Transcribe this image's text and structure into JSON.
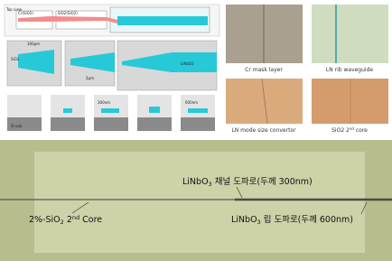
{
  "schematic": {
    "labels": [
      "Top view",
      "Cr(SiO2)",
      "SiO2(SiO2)",
      "SiO2",
      "Si sub.",
      "LiNbO3",
      "100µm",
      "2µm",
      "300nm",
      "600nm"
    ]
  },
  "micrographs": [
    {
      "text": "Cr mask layer"
    },
    {
      "text": "LN rib waveguide"
    },
    {
      "text": "LN mode size convertor"
    },
    {
      "text": "SiO2 2",
      "sup": "nd",
      "rest": " core"
    }
  ],
  "main_image": {
    "labels": [
      {
        "text": "LiNbO",
        "sub": "3",
        "rest": " 채널 도파로(두께 300nm)"
      },
      {
        "text": "2%-SiO",
        "sub": "2",
        "mid": " 2",
        "sup": "nd",
        "rest": " Core"
      },
      {
        "text": "LiNbO",
        "sub": "3",
        "rest": " 립 도파로(두께 600nm)"
      }
    ]
  }
}
